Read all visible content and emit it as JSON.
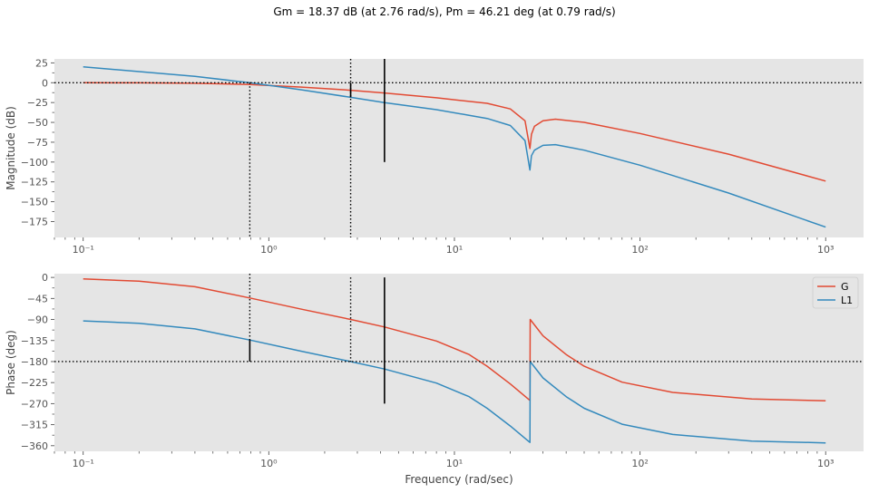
{
  "title": "Gm = 18.37 dB (at 2.76 rad/s), Pm = 46.21 deg (at 0.79 rad/s)",
  "colors": {
    "G": "#e24a33",
    "L1": "#348abd",
    "background": "#e5e5e5",
    "marker": "#000000"
  },
  "chart_data": [
    {
      "type": "line",
      "panel": "magnitude",
      "xlabel": "",
      "ylabel": "Magnitude (dB)",
      "xscale": "log",
      "xlim": [
        0.07,
        1600
      ],
      "ylim": [
        -195,
        30
      ],
      "xticks": [
        0.1,
        1,
        10,
        100,
        1000
      ],
      "xtick_labels": [
        "10⁻¹",
        "10⁰",
        "10¹",
        "10²",
        "10³"
      ],
      "yticks": [
        25,
        0,
        -25,
        -50,
        -75,
        -100,
        -125,
        -150,
        -175
      ],
      "ytick_labels": [
        "25",
        "0",
        "−25",
        "−50",
        "−75",
        "−100",
        "−125",
        "−150",
        "−175"
      ],
      "grid": false,
      "series": [
        {
          "name": "G",
          "x": [
            0.1,
            0.2,
            0.4,
            0.79,
            1.5,
            2.76,
            4.2,
            8,
            15,
            20,
            24,
            25.5,
            26,
            27,
            30,
            35,
            50,
            100,
            300,
            1000
          ],
          "y": [
            0,
            -0.2,
            -0.7,
            -2.2,
            -5.5,
            -9.5,
            -13,
            -19,
            -26,
            -33,
            -48,
            -83,
            -65,
            -55,
            -48,
            -46,
            -50,
            -64,
            -90,
            -124
          ]
        },
        {
          "name": "L1",
          "x": [
            0.1,
            0.2,
            0.4,
            0.79,
            1.5,
            2.76,
            4.2,
            8,
            15,
            20,
            24,
            25.5,
            26,
            27,
            30,
            35,
            50,
            100,
            300,
            1000
          ],
          "y": [
            20,
            14,
            8,
            0,
            -9,
            -18.4,
            -25,
            -34,
            -45,
            -54,
            -73,
            -110,
            -92,
            -85,
            -79,
            -78,
            -85,
            -104,
            -139,
            -182
          ]
        }
      ],
      "markers": [
        {
          "kind": "dotted_h",
          "y": 0
        },
        {
          "kind": "dotted_v",
          "x": 0.79,
          "y_from": 0,
          "y_to": -195
        },
        {
          "kind": "dotted_v",
          "x": 2.76,
          "y_from": 30,
          "y_to": -195
        },
        {
          "kind": "solid_v",
          "x": 2.76,
          "y_from": 0,
          "y_to": -18.4
        },
        {
          "kind": "solid_v",
          "x": 4.2,
          "y_from": 30,
          "y_to": -100
        }
      ]
    },
    {
      "type": "line",
      "panel": "phase",
      "xlabel": "Frequency (rad/sec)",
      "ylabel": "Phase (deg)",
      "xscale": "log",
      "xlim": [
        0.07,
        1600
      ],
      "ylim": [
        -372,
        8
      ],
      "xticks": [
        0.1,
        1,
        10,
        100,
        1000
      ],
      "xtick_labels": [
        "10⁻¹",
        "10⁰",
        "10¹",
        "10²",
        "10³"
      ],
      "yticks": [
        0,
        -45,
        -90,
        -135,
        -180,
        -225,
        -270,
        -315,
        -360
      ],
      "ytick_labels": [
        "0",
        "−45",
        "−90",
        "−135",
        "−180",
        "−225",
        "−270",
        "−315",
        "−360"
      ],
      "grid": false,
      "legend": {
        "position": "top-right",
        "entries": [
          "G",
          "L1"
        ]
      },
      "series": [
        {
          "name": "G",
          "x": [
            0.1,
            0.2,
            0.4,
            0.79,
            1.5,
            2.76,
            4.2,
            8,
            12,
            15,
            20,
            25.5,
            25.6,
            30,
            40,
            50,
            80,
            150,
            400,
            1000
          ],
          "y": [
            -3,
            -8,
            -20,
            -44,
            -68,
            -90,
            -106,
            -136,
            -165,
            -190,
            -228,
            -263,
            -90,
            -125,
            -165,
            -190,
            -224,
            -246,
            -260,
            -264
          ]
        },
        {
          "name": "L1",
          "x": [
            0.1,
            0.2,
            0.4,
            0.79,
            1.5,
            2.76,
            4.2,
            8,
            12,
            15,
            20,
            25.5,
            25.6,
            30,
            40,
            50,
            80,
            150,
            400,
            1000
          ],
          "y": [
            -93,
            -98,
            -110,
            -134,
            -158,
            -180,
            -196,
            -226,
            -255,
            -280,
            -318,
            -353,
            -180,
            -215,
            -255,
            -280,
            -314,
            -336,
            -350,
            -354
          ]
        }
      ],
      "markers": [
        {
          "kind": "dotted_h",
          "y": -180
        },
        {
          "kind": "dotted_v",
          "x": 0.79,
          "y_from": 8,
          "y_to": -134
        },
        {
          "kind": "solid_v",
          "x": 0.79,
          "y_from": -134,
          "y_to": -180
        },
        {
          "kind": "dotted_v",
          "x": 2.76,
          "y_from": 0,
          "y_to": -180
        },
        {
          "kind": "solid_v",
          "x": 4.2,
          "y_from": 0,
          "y_to": -270
        }
      ]
    }
  ]
}
